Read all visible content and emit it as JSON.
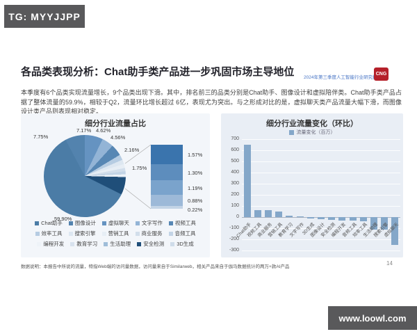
{
  "header_badge": {
    "text": "TG: MYYJJPP"
  },
  "footer_badge": {
    "text": "www.loowl.com"
  },
  "slide": {
    "title": "各品类表现分析：Chat助手类产品进一步巩固市场主导地位",
    "report_label": "2024年第三季度人工智能行业研究报告",
    "logo_text": "CNG",
    "body_text": "本季度有6个品类实现流量增长，9个品类出现下滑。其中，排名前三的品类分别是Chat助手、图像设计和虚拟陪伴类。Chat助手类产品占据了整体流量的59.9%，相较于Q2，流量环比增长超过 6亿，表现尤为突出。与之形成对比的是，虚拟聊天类产品流量大幅下滑，而图像设计类产品则表现相对稳定。",
    "footnote": "数据说明：本报告中所说的流量，特指Web端的访问量数据，访问量来自于Similarweb，相关产品来自于伽马数据统计的两万+款AI产品",
    "page_number": "14"
  },
  "colors": {
    "badge_bg": "#59595b",
    "accent_blue": "#4472c4",
    "logo_red": "#b5202a",
    "bar_fill": "#84a7c9",
    "pie_main": "#4b7ca6",
    "pie_dark": "#1f4e79"
  },
  "chart_data": [
    {
      "type": "pie",
      "title": "细分行业流量占比",
      "slices": [
        {
          "label": "7.17%",
          "value": 7.17,
          "color": "#6593c1"
        },
        {
          "label": "4.62%",
          "value": 4.62,
          "color": "#93b4d6"
        },
        {
          "label": "4.56%",
          "value": 4.56,
          "color": "#5787b4"
        },
        {
          "label": "2.16%",
          "value": 2.16,
          "color": "#b6cce2"
        },
        {
          "label": "1.75%",
          "value": 1.75,
          "color": "#dde7f1"
        },
        {
          "label": "",
          "value": 1.57,
          "color": "#e7eef5"
        },
        {
          "label": "",
          "value": 1.3,
          "color": "#d2deeb"
        },
        {
          "label": "",
          "value": 1.19,
          "color": "#c3d4e6"
        },
        {
          "label": "",
          "value": 0.88,
          "color": "#eef3f8"
        },
        {
          "label": "",
          "value": 0.22,
          "color": "#d8e2ee"
        },
        {
          "label": "",
          "value": 6.93,
          "color": "#1f4e79"
        },
        {
          "label": "59.90%",
          "value": 59.9,
          "color": "#4b7ca6"
        },
        {
          "label": "7.75%",
          "value": 7.75,
          "color": "#5383ae"
        }
      ],
      "callout_stack": {
        "labels": [
          "1.57%",
          "1.30%",
          "1.19%",
          "0.88%",
          "0.22%"
        ],
        "values": [
          1.57,
          1.3,
          1.19,
          0.88,
          0.22
        ],
        "colors": [
          "#3a74ad",
          "#5d8dbd",
          "#7aa3cc",
          "#9db9d8",
          "#c3d4e6"
        ]
      },
      "legend": [
        {
          "name": "Chat助手",
          "color": "#4b7ca6"
        },
        {
          "name": "图像设计",
          "color": "#5383ae"
        },
        {
          "name": "虚拟聊天",
          "color": "#6593c1"
        },
        {
          "name": "文字写作",
          "color": "#93b4d6"
        },
        {
          "name": "视频工具",
          "color": "#5787b4"
        },
        {
          "name": "效率工具",
          "color": "#b6cce2"
        },
        {
          "name": "搜索引擎",
          "color": "#dde7f1"
        },
        {
          "name": "营销工具",
          "color": "#e7eef5"
        },
        {
          "name": "商业服务",
          "color": "#d2deeb"
        },
        {
          "name": "音频工具",
          "color": "#c3d4e6"
        },
        {
          "name": "编程开发",
          "color": "#eef3f8"
        },
        {
          "name": "教育学习",
          "color": "#d8e2ee"
        },
        {
          "name": "生活助理",
          "color": "#9fbdd9"
        },
        {
          "name": "安全检测",
          "color": "#1f4e79"
        },
        {
          "name": "3D生成",
          "color": "#cfdcea"
        }
      ]
    },
    {
      "type": "bar",
      "title": "细分行业流量变化（环比）",
      "legend_label": "流量变化（百万）",
      "categories": [
        "Chat助手",
        "视频工具",
        "商业服务",
        "营销工具",
        "教育学习",
        "文字写作",
        "3D生成",
        "图像设计",
        "安全检测",
        "编程开发",
        "音频工具",
        "效率工具",
        "生活助理",
        "搜索引擎",
        "虚拟聊天"
      ],
      "values": [
        650,
        65,
        65,
        50,
        15,
        5,
        -15,
        -20,
        -25,
        -30,
        -30,
        -35,
        -110,
        -115,
        -250
      ],
      "bar_color": "#84a7c9",
      "ylabel": "",
      "ylim": [
        -300,
        700
      ],
      "ytick_step": 100,
      "grid": true,
      "legend_position": "top"
    }
  ]
}
